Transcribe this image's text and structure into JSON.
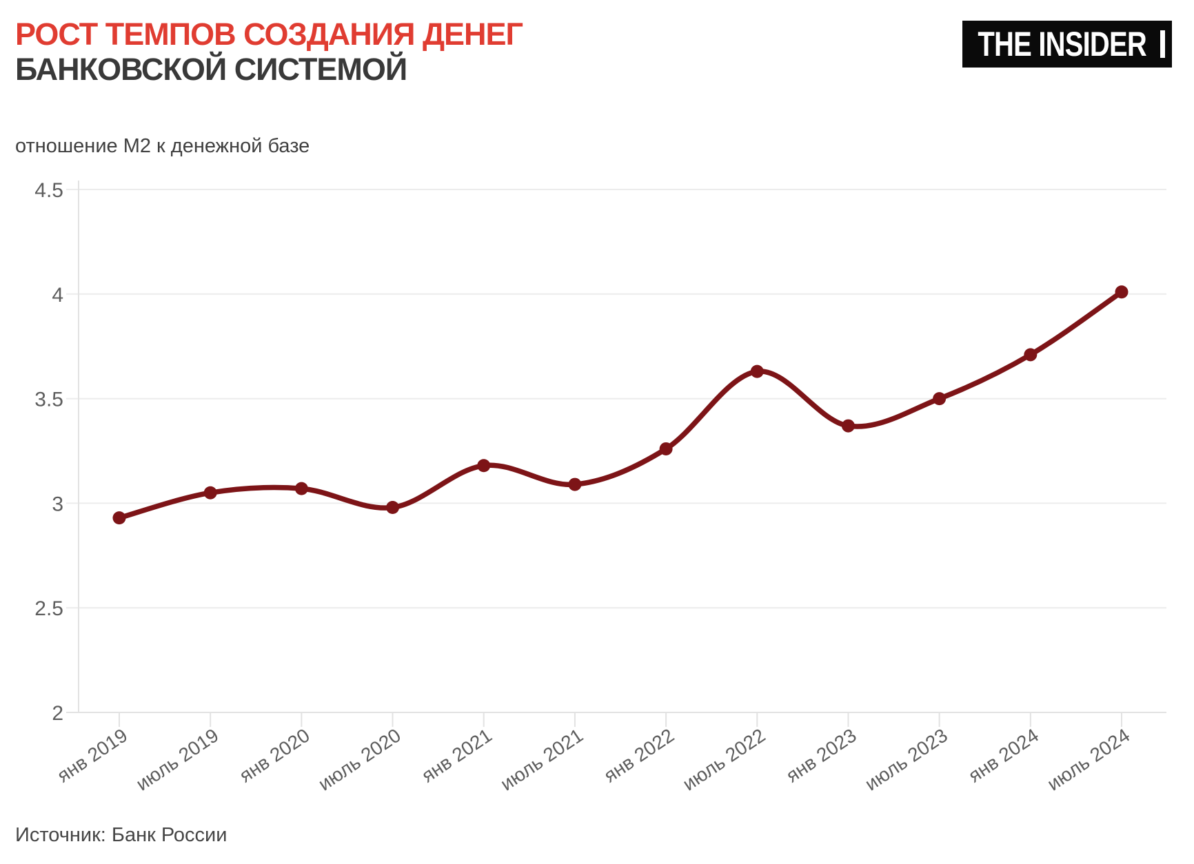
{
  "header": {
    "title_line1": "РОСТ ТЕМПОВ СОЗДАНИЯ ДЕНЕГ",
    "title_line2": "БАНКОВСКОЙ СИСТЕМОЙ",
    "logo_text": "THE INSIDER"
  },
  "subtitle": "отношение М2 к денежной базе",
  "source": "Источник: Банк России",
  "colors": {
    "title_accent": "#e03c31",
    "title_dark": "#393939",
    "line": "#7d1417",
    "gridline": "#ececec",
    "axis": "#e2e2e2",
    "axis_label": "#5d5d5d",
    "logo_bg": "#0a0a0a",
    "logo_fg": "#ffffff"
  },
  "chart_data": {
    "type": "line",
    "title": "РОСТ ТЕМПОВ СОЗДАНИЯ ДЕНЕГ БАНКОВСКОЙ СИСТЕМОЙ",
    "ylabel": "отношение М2 к денежной базе",
    "xlabel": "",
    "categories": [
      "янв 2019",
      "июль 2019",
      "янв 2020",
      "июль 2020",
      "янв 2021",
      "июль 2021",
      "янв 2022",
      "июль 2022",
      "янв 2023",
      "июль 2023",
      "янв 2024",
      "июль 2024"
    ],
    "values": [
      2.93,
      3.05,
      3.07,
      2.98,
      3.18,
      3.09,
      3.26,
      3.63,
      3.37,
      3.5,
      3.71,
      4.01
    ],
    "ylim": [
      2,
      4.5
    ],
    "yticks": [
      2,
      2.5,
      3,
      3.5,
      4,
      4.5
    ],
    "ytick_labels": [
      "2",
      "2.5",
      "3",
      "3.5",
      "4",
      "4.5"
    ],
    "grid": true,
    "legend": false,
    "smooth": true,
    "marker": "circle"
  }
}
